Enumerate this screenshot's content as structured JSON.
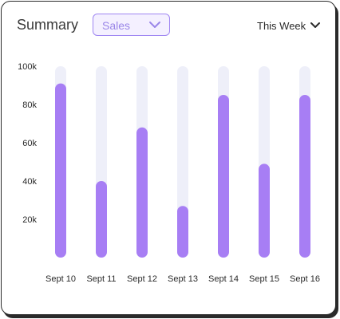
{
  "header": {
    "title": "Summary",
    "metric_select": {
      "selected": "Sales"
    },
    "period_select": {
      "selected": "This Week"
    }
  },
  "colors": {
    "bar": "#a77ef4",
    "track": "#eeeff9",
    "text": "#2a2a2a",
    "accent_border": "#9f86f2"
  },
  "icons": {
    "metric_select": "chevron-down-icon",
    "period_select": "chevron-down-icon"
  },
  "chart_data": {
    "type": "bar",
    "categories": [
      "Sept 10",
      "Sept 11",
      "Sept 12",
      "Sept 13",
      "Sept 14",
      "Sept 15",
      "Sept 16"
    ],
    "values": [
      91000,
      40000,
      68000,
      27000,
      85000,
      49000,
      85000
    ],
    "y_ticks": [
      "20k",
      "40k",
      "60k",
      "80k",
      "100k"
    ],
    "y_tick_values": [
      20000,
      40000,
      60000,
      80000,
      100000
    ],
    "ylim": [
      0,
      100000
    ],
    "grid": false,
    "legend": "none",
    "title": "",
    "xlabel": "",
    "ylabel": ""
  }
}
